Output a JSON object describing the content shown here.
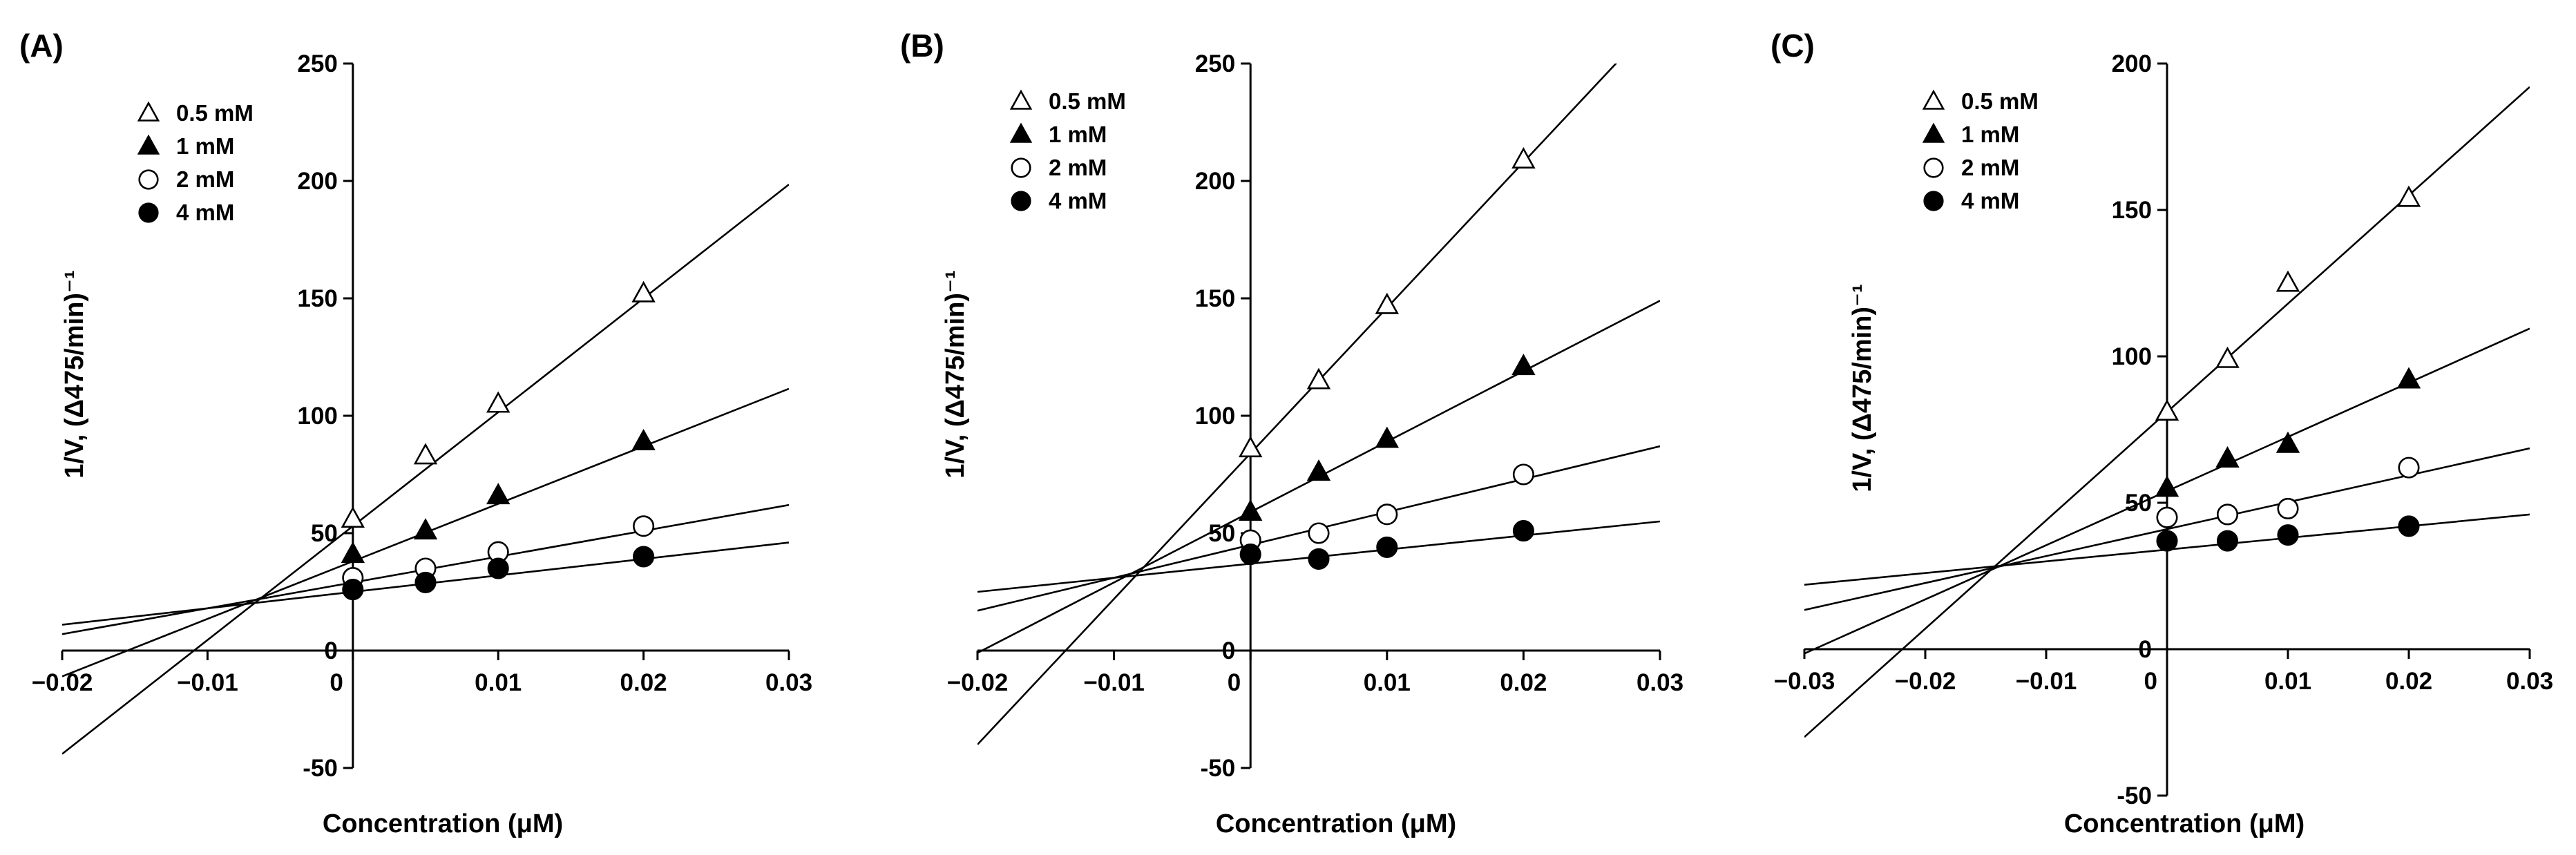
{
  "chart_data": [
    {
      "type": "line",
      "panel_label": "(A)",
      "xlabel": "Concentration (μM)",
      "ylabel": "1/V, (Δ475/min)⁻¹",
      "xlim": [
        -0.02,
        0.03
      ],
      "ylim": [
        -50,
        250
      ],
      "xticks": [
        -0.02,
        -0.01,
        0,
        0.01,
        0.02,
        0.03
      ],
      "xtick_labels": [
        "−0.02",
        "−0.01",
        "0",
        "0.01",
        "0.02",
        "0.03"
      ],
      "yticks": [
        -50,
        0,
        50,
        100,
        150,
        200,
        250
      ],
      "ytick_labels": [
        "-50",
        "0",
        "50",
        "100",
        "150",
        "200",
        "250"
      ],
      "legend": "top-left",
      "series": [
        {
          "name": "0.5 mM",
          "marker": "triangle-open",
          "x": [
            0,
            0.005,
            0.01,
            0.02
          ],
          "y": [
            56,
            83,
            105,
            152
          ],
          "fit_slope": 4850,
          "fit_intercept": 53
        },
        {
          "name": "1 mM",
          "marker": "triangle-filled",
          "x": [
            0,
            0.005,
            0.01,
            0.02
          ],
          "y": [
            41,
            51,
            66,
            89
          ],
          "fit_slope": 2450,
          "fit_intercept": 38
        },
        {
          "name": "2 mM",
          "marker": "circle-open",
          "x": [
            0,
            0.005,
            0.01,
            0.02
          ],
          "y": [
            31,
            35,
            42,
            53
          ],
          "fit_slope": 1100,
          "fit_intercept": 29
        },
        {
          "name": "4 mM",
          "marker": "circle-filled",
          "x": [
            0,
            0.005,
            0.01,
            0.02
          ],
          "y": [
            26,
            29,
            35,
            40
          ],
          "fit_slope": 700,
          "fit_intercept": 25
        }
      ]
    },
    {
      "type": "line",
      "panel_label": "(B)",
      "xlabel": "Concentration (μM)",
      "ylabel": "1/V, (Δ475/min)⁻¹",
      "xlim": [
        -0.02,
        0.03
      ],
      "ylim": [
        -50,
        250
      ],
      "xticks": [
        -0.02,
        -0.01,
        0,
        0.01,
        0.02,
        0.03
      ],
      "xtick_labels": [
        "−0.02",
        "−0.01",
        "0",
        "0.01",
        "0.02",
        "0.03"
      ],
      "yticks": [
        -50,
        0,
        50,
        100,
        150,
        200,
        250
      ],
      "ytick_labels": [
        "-50",
        "0",
        "50",
        "100",
        "150",
        "200",
        "250"
      ],
      "legend": "top-left",
      "series": [
        {
          "name": "0.5 mM",
          "marker": "triangle-open",
          "x": [
            0,
            0.005,
            0.01,
            0.02
          ],
          "y": [
            86,
            115,
            147,
            209
          ],
          "fit_slope": 6200,
          "fit_intercept": 84
        },
        {
          "name": "1 mM",
          "marker": "triangle-filled",
          "x": [
            0,
            0.005,
            0.01,
            0.02
          ],
          "y": [
            59,
            76,
            90,
            121
          ],
          "fit_slope": 3000,
          "fit_intercept": 59
        },
        {
          "name": "2 mM",
          "marker": "circle-open",
          "x": [
            0,
            0.005,
            0.01,
            0.02
          ],
          "y": [
            47,
            50,
            58,
            75
          ],
          "fit_slope": 1400,
          "fit_intercept": 45
        },
        {
          "name": "4 mM",
          "marker": "circle-filled",
          "x": [
            0,
            0.005,
            0.01,
            0.02
          ],
          "y": [
            41,
            39,
            44,
            51
          ],
          "fit_slope": 600,
          "fit_intercept": 37
        }
      ]
    },
    {
      "type": "line",
      "panel_label": "(C)",
      "xlabel": "Concentration (μM)",
      "ylabel": "1/V, (Δ475/min)⁻¹",
      "xlim": [
        -0.03,
        0.03
      ],
      "ylim": [
        -50,
        200
      ],
      "xticks": [
        -0.03,
        -0.02,
        -0.01,
        0,
        0.01,
        0.02,
        0.03
      ],
      "xtick_labels": [
        "−0.03",
        "−0.02",
        "−0.01",
        "0",
        "0.01",
        "0.02",
        "0.03"
      ],
      "yticks": [
        -50,
        0,
        50,
        100,
        150,
        200
      ],
      "ytick_labels": [
        "-50",
        "0",
        "50",
        "100",
        "150",
        "200"
      ],
      "legend": "top-left",
      "series": [
        {
          "name": "0.5 mM",
          "marker": "triangle-open",
          "x": [
            0,
            0.005,
            0.01,
            0.02
          ],
          "y": [
            81,
            99,
            125,
            154
          ],
          "fit_slope": 3700,
          "fit_intercept": 81
        },
        {
          "name": "1 mM",
          "marker": "triangle-filled",
          "x": [
            0,
            0.005,
            0.01,
            0.02
          ],
          "y": [
            55,
            65,
            70,
            92
          ],
          "fit_slope": 1850,
          "fit_intercept": 54
        },
        {
          "name": "2 mM",
          "marker": "circle-open",
          "x": [
            0,
            0.005,
            0.01,
            0.02
          ],
          "y": [
            45,
            46,
            48,
            62
          ],
          "fit_slope": 920,
          "fit_intercept": 41
        },
        {
          "name": "4 mM",
          "marker": "circle-filled",
          "x": [
            0,
            0.005,
            0.01,
            0.02
          ],
          "y": [
            37,
            37,
            39,
            42
          ],
          "fit_slope": 400,
          "fit_intercept": 34
        }
      ]
    }
  ]
}
